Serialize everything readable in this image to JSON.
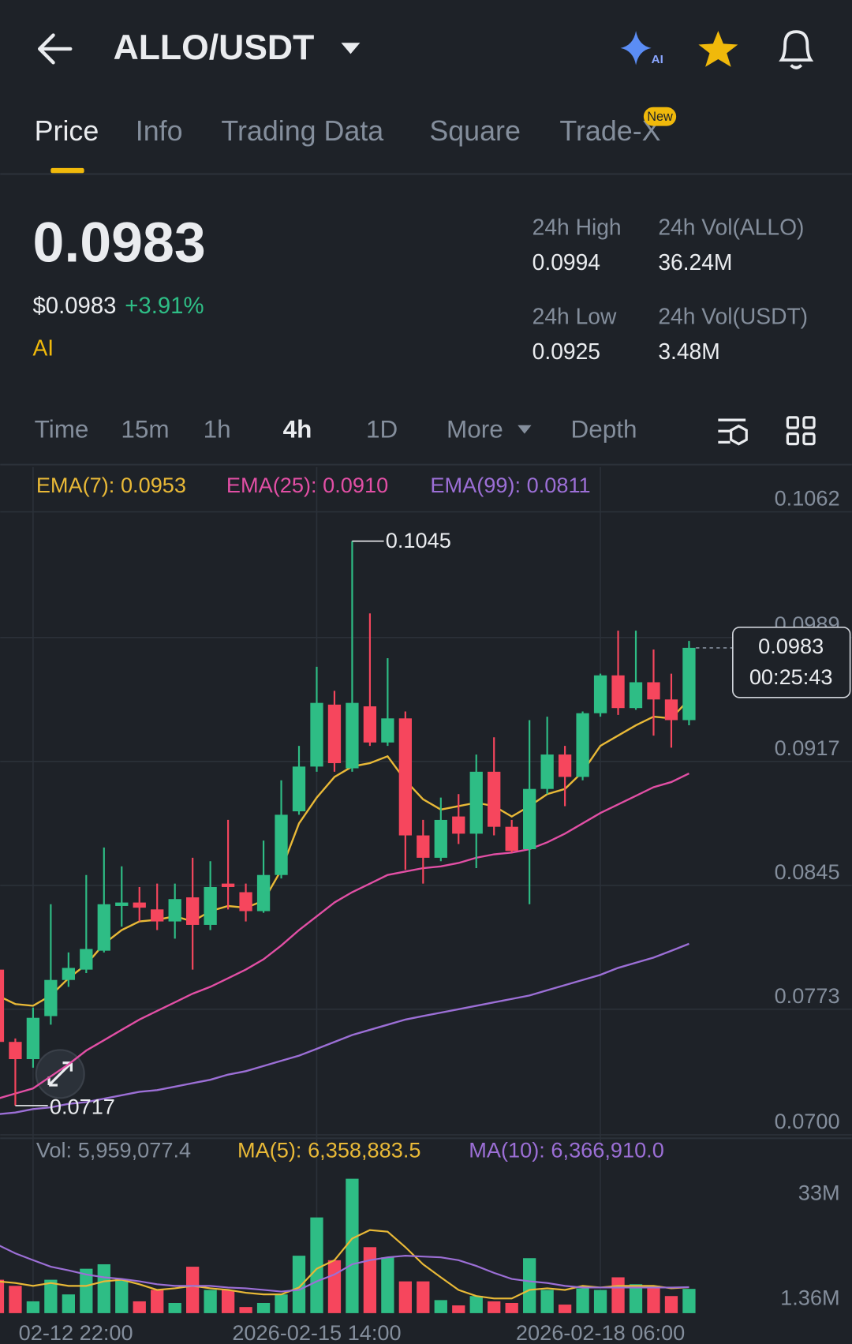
{
  "header": {
    "pair": "ALLO/USDT",
    "ai_badge": "AI"
  },
  "tabs": [
    "Price",
    "Info",
    "Trading Data",
    "Square",
    "Trade-X"
  ],
  "tab_badge": "New",
  "price": {
    "last": "0.0983",
    "usd": "$0.0983",
    "change": "+3.91%",
    "ai": "AI"
  },
  "stats": [
    {
      "label": "24h High",
      "value": "0.0994"
    },
    {
      "label": "24h Vol(ALLO)",
      "value": "36.24M"
    },
    {
      "label": "24h Low",
      "value": "0.0925"
    },
    {
      "label": "24h Vol(USDT)",
      "value": "3.48M"
    }
  ],
  "intervals": [
    "Time",
    "15m",
    "1h",
    "4h",
    "1D",
    "More",
    "Depth"
  ],
  "chart_data": {
    "type": "candlestick",
    "categories": [
      null,
      null,
      "02-12 22:00",
      null,
      null,
      null,
      null,
      null,
      null,
      null,
      null,
      null,
      null,
      null,
      null,
      null,
      null,
      null,
      "2026-02-15 14:00",
      null,
      null,
      null,
      null,
      null,
      null,
      null,
      null,
      null,
      null,
      null,
      null,
      null,
      null,
      null,
      "2026-02-18 06:00",
      null,
      null,
      null,
      null,
      null
    ],
    "open": [
      0.0796,
      0.0754,
      0.0744,
      0.0769,
      0.079,
      0.0796,
      0.0807,
      0.0833,
      0.0835,
      0.0831,
      0.0824,
      0.0838,
      0.0822,
      0.0846,
      0.0841,
      0.083,
      0.0851,
      0.0888,
      0.0914,
      0.095,
      0.0913,
      0.0949,
      0.0928,
      0.0942,
      0.0874,
      0.0861,
      0.0885,
      0.0875,
      0.0911,
      0.0879,
      0.0866,
      0.0901,
      0.0921,
      0.0908,
      0.0945,
      0.0967,
      0.0948,
      0.0963,
      0.0953,
      0.0941
    ],
    "high": [
      0.08,
      0.0756,
      0.0774,
      0.0834,
      0.0806,
      0.0851,
      0.0867,
      0.0856,
      0.0844,
      0.0846,
      0.0846,
      0.0861,
      0.0859,
      0.0883,
      0.0846,
      0.0871,
      0.0906,
      0.0926,
      0.0972,
      0.0958,
      0.1045,
      0.1003,
      0.0977,
      0.0946,
      0.0883,
      0.0896,
      0.0898,
      0.0921,
      0.0931,
      0.0883,
      0.0941,
      0.0943,
      0.0926,
      0.0946,
      0.0968,
      0.0993,
      0.0993,
      0.0982,
      0.0968,
      0.0987
    ],
    "low": [
      0.0752,
      0.0717,
      0.0739,
      0.0764,
      0.0786,
      0.0794,
      0.0806,
      0.0821,
      0.0824,
      0.0819,
      0.0814,
      0.0796,
      0.0819,
      0.0831,
      0.0824,
      0.0829,
      0.0849,
      0.0886,
      0.0911,
      0.0911,
      0.0911,
      0.0926,
      0.0926,
      0.0854,
      0.0846,
      0.0859,
      0.0869,
      0.0855,
      0.0874,
      0.0864,
      0.0834,
      0.0898,
      0.0891,
      0.0906,
      0.0943,
      0.0944,
      0.0947,
      0.0932,
      0.0925,
      0.0938
    ],
    "close": [
      0.0754,
      0.0744,
      0.0768,
      0.079,
      0.0797,
      0.0808,
      0.0834,
      0.0835,
      0.0832,
      0.0824,
      0.0837,
      0.0822,
      0.0844,
      0.0844,
      0.083,
      0.0851,
      0.0886,
      0.0914,
      0.0951,
      0.0916,
      0.0951,
      0.0928,
      0.0942,
      0.0874,
      0.0861,
      0.0883,
      0.0875,
      0.0911,
      0.0879,
      0.0865,
      0.0901,
      0.0921,
      0.0908,
      0.0945,
      0.0967,
      0.0948,
      0.0963,
      0.0953,
      0.0941,
      0.0983
    ],
    "up_color": "#2ebd85",
    "down_color": "#f6465d",
    "series": [
      {
        "name": "EMA(7):",
        "color": "#e9b937",
        "values": [
          0.0781,
          0.0776,
          0.0775,
          0.0781,
          0.0791,
          0.0799,
          0.0811,
          0.0819,
          0.0824,
          0.0825,
          0.0827,
          0.0824,
          0.083,
          0.0833,
          0.0832,
          0.0836,
          0.0854,
          0.0881,
          0.0896,
          0.0908,
          0.0914,
          0.0916,
          0.092,
          0.0906,
          0.0895,
          0.0889,
          0.0891,
          0.0893,
          0.0891,
          0.0885,
          0.0891,
          0.0898,
          0.0901,
          0.0911,
          0.0926,
          0.0932,
          0.0938,
          0.0943,
          0.0942,
          0.0953
        ]
      },
      {
        "name": "EMA(25):",
        "color": "#e24fa5",
        "values": [
          0.0721,
          0.0724,
          0.0727,
          0.0734,
          0.0741,
          0.0749,
          0.0755,
          0.0761,
          0.0767,
          0.0772,
          0.0777,
          0.0782,
          0.0786,
          0.0791,
          0.0796,
          0.0802,
          0.081,
          0.0819,
          0.0827,
          0.0835,
          0.0841,
          0.0846,
          0.0851,
          0.0853,
          0.0855,
          0.0856,
          0.0858,
          0.0861,
          0.0863,
          0.0864,
          0.0866,
          0.087,
          0.0875,
          0.0881,
          0.0887,
          0.0892,
          0.0897,
          0.0902,
          0.0905,
          0.091
        ],
        "value_labels": [
          null,
          null,
          null,
          null,
          null,
          null,
          null,
          null,
          null,
          null,
          null,
          null,
          null,
          null,
          null,
          null,
          null,
          null,
          null,
          null,
          null,
          null,
          null,
          null,
          null,
          null,
          null,
          null,
          null,
          null,
          null,
          null,
          null,
          null,
          null,
          null,
          null,
          null,
          null,
          "0.0910"
        ]
      },
      {
        "name": "EMA(99):",
        "color": "#9c6fd6",
        "values": [
          0.0712,
          0.0713,
          0.0715,
          0.0716,
          0.0718,
          0.0719,
          0.0721,
          0.0723,
          0.0725,
          0.0726,
          0.0728,
          0.073,
          0.0732,
          0.0735,
          0.0737,
          0.074,
          0.0743,
          0.0746,
          0.075,
          0.0754,
          0.0758,
          0.0761,
          0.0764,
          0.0767,
          0.0769,
          0.0771,
          0.0773,
          0.0775,
          0.0777,
          0.0779,
          0.0781,
          0.0784,
          0.0787,
          0.079,
          0.0793,
          0.0797,
          0.08,
          0.0803,
          0.0807,
          0.0811
        ]
      }
    ],
    "ylim": [
      0.0697,
      0.1088
    ],
    "yticks": [
      0.1062,
      0.0989,
      0.0917,
      0.0845,
      0.0773,
      {
        "value": 0.07,
        "label": "0.0700"
      }
    ],
    "countdown": "00:25:43",
    "volume": {
      "name": "Vol:",
      "values": [
        8200000,
        6700000,
        2900000,
        8200000,
        4600000,
        10900000,
        12000000,
        8400000,
        2900000,
        5700000,
        2500000,
        11400000,
        5700000,
        5700000,
        1500000,
        2500000,
        4600000,
        14100000,
        23500000,
        13000000,
        33000000,
        16200000,
        13700000,
        7800000,
        7800000,
        3200000,
        1900000,
        4200000,
        2900000,
        2500000,
        13500000,
        5700000,
        2100000,
        6100000,
        5700000,
        8800000,
        7100000,
        6700000,
        4200000,
        5959077.4
      ],
      "value_labels": [
        null,
        null,
        null,
        null,
        null,
        null,
        null,
        null,
        null,
        null,
        null,
        null,
        null,
        null,
        null,
        null,
        null,
        null,
        null,
        null,
        null,
        null,
        null,
        null,
        null,
        null,
        null,
        null,
        null,
        null,
        null,
        null,
        null,
        null,
        null,
        null,
        null,
        null,
        null,
        "5,959,077.4"
      ]
    },
    "volume_ma": [
      {
        "name": "MA(5):",
        "color": "#e9b937",
        "values": [
          7800000,
          7400000,
          6700000,
          7400000,
          6700000,
          6700000,
          7800000,
          8200000,
          7100000,
          5700000,
          6100000,
          6700000,
          6100000,
          5700000,
          5000000,
          4600000,
          4600000,
          6300000,
          10900000,
          13000000,
          18300000,
          20400000,
          20000000,
          16200000,
          12000000,
          8800000,
          5700000,
          4200000,
          3600000,
          3600000,
          5700000,
          6100000,
          5700000,
          6700000,
          6300000,
          6700000,
          6700000,
          6700000,
          6100000,
          6358883.5
        ],
        "value_labels": [
          null,
          null,
          null,
          null,
          null,
          null,
          null,
          null,
          null,
          null,
          null,
          null,
          null,
          null,
          null,
          null,
          null,
          null,
          null,
          null,
          null,
          null,
          null,
          null,
          null,
          null,
          null,
          null,
          null,
          null,
          null,
          null,
          null,
          null,
          null,
          null,
          null,
          null,
          null,
          "6,358,883.5"
        ]
      },
      {
        "name": "MA(10):",
        "color": "#9c6fd6",
        "values": [
          16800000,
          14700000,
          13000000,
          11400000,
          10500000,
          9500000,
          8800000,
          8400000,
          7800000,
          7100000,
          6700000,
          6700000,
          6700000,
          6300000,
          6100000,
          5700000,
          5300000,
          5700000,
          7800000,
          9500000,
          12000000,
          13000000,
          13700000,
          14100000,
          13900000,
          13700000,
          13000000,
          11600000,
          9900000,
          8400000,
          7800000,
          7400000,
          6700000,
          6300000,
          6300000,
          6300000,
          6300000,
          6300000,
          6300000,
          6366910.0
        ],
        "value_labels": [
          null,
          null,
          null,
          null,
          null,
          null,
          null,
          null,
          null,
          null,
          null,
          null,
          null,
          null,
          null,
          null,
          null,
          null,
          null,
          null,
          null,
          null,
          null,
          null,
          null,
          null,
          null,
          null,
          null,
          null,
          null,
          null,
          null,
          null,
          null,
          null,
          null,
          null,
          null,
          "6,366,910.0"
        ]
      }
    ],
    "vol_ylim": [
      0,
      36200000
    ],
    "vol_ticks": [
      {
        "value": 33000000,
        "label": "33M"
      },
      {
        "value": 1360000,
        "label": "1.36M"
      }
    ],
    "grid": true
  }
}
